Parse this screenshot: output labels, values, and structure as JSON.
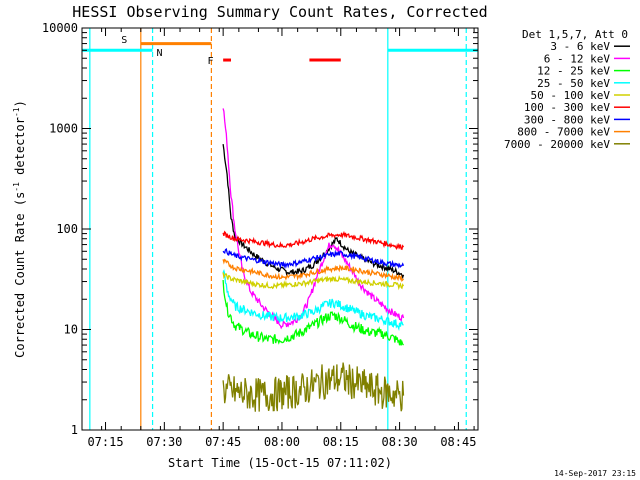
{
  "chart_data": {
    "type": "line",
    "title": "HESSI Observing Summary Count Rates, Corrected",
    "xlabel": "Start Time (15-Oct-15 07:11:02)",
    "ylabel": "Corrected Count Rate (s⁻¹ detector⁻¹)",
    "ylabel_parts": {
      "main": "Corrected Count Rate (s",
      "sup1": "-1",
      "mid": " detector",
      "sup2": "-1",
      "end": ")"
    },
    "yscale": "log",
    "xlim": [
      "07:09",
      "08:50"
    ],
    "ylim": [
      1,
      10000
    ],
    "xticks": [
      "07:15",
      "07:30",
      "07:45",
      "08:00",
      "08:15",
      "08:30",
      "08:45"
    ],
    "yticks": [
      {
        "value": 1,
        "label": "1"
      },
      {
        "value": 10,
        "label": "10"
      },
      {
        "value": 100,
        "label": "100"
      },
      {
        "value": 1000,
        "label": "1000"
      },
      {
        "value": 10000,
        "label": "10000"
      }
    ],
    "legend_header": "Det 1,5,7, Att 0",
    "legend_position": "right, outside plot",
    "series": [
      {
        "name": "3 - 6 keV",
        "color": "#000000",
        "points": [
          [
            "07:45",
            700
          ],
          [
            "07:46",
            350
          ],
          [
            "07:47",
            130
          ],
          [
            "07:48",
            85
          ],
          [
            "07:50",
            70
          ],
          [
            "07:53",
            55
          ],
          [
            "07:56",
            46
          ],
          [
            "07:59",
            40
          ],
          [
            "08:02",
            37
          ],
          [
            "08:05",
            38
          ],
          [
            "08:08",
            44
          ],
          [
            "08:11",
            58
          ],
          [
            "08:13",
            72
          ],
          [
            "08:14",
            80
          ],
          [
            "08:15",
            72
          ],
          [
            "08:17",
            60
          ],
          [
            "08:20",
            52
          ],
          [
            "08:23",
            46
          ],
          [
            "08:26",
            42
          ],
          [
            "08:29",
            38
          ],
          [
            "08:31",
            35
          ]
        ]
      },
      {
        "name": "6 - 12 keV",
        "color": "#ff00ff",
        "points": [
          [
            "07:45",
            1700
          ],
          [
            "07:46",
            700
          ],
          [
            "07:47",
            220
          ],
          [
            "07:48",
            100
          ],
          [
            "07:49",
            60
          ],
          [
            "07:50",
            38
          ],
          [
            "07:52",
            24
          ],
          [
            "07:55",
            17
          ],
          [
            "07:58",
            13
          ],
          [
            "08:00",
            11
          ],
          [
            "08:03",
            12
          ],
          [
            "08:05",
            14
          ],
          [
            "08:07",
            20
          ],
          [
            "08:09",
            35
          ],
          [
            "08:11",
            55
          ],
          [
            "08:12",
            68
          ],
          [
            "08:13",
            72
          ],
          [
            "08:14",
            65
          ],
          [
            "08:16",
            50
          ],
          [
            "08:18",
            38
          ],
          [
            "08:20",
            28
          ],
          [
            "08:23",
            21
          ],
          [
            "08:26",
            17
          ],
          [
            "08:29",
            14
          ],
          [
            "08:31",
            13
          ]
        ]
      },
      {
        "name": "12 - 25 keV",
        "color": "#00ff00",
        "points": [
          [
            "07:45",
            30
          ],
          [
            "07:46",
            16
          ],
          [
            "07:48",
            11
          ],
          [
            "07:52",
            9
          ],
          [
            "07:56",
            8
          ],
          [
            "08:00",
            8
          ],
          [
            "08:04",
            9
          ],
          [
            "08:08",
            11
          ],
          [
            "08:11",
            13
          ],
          [
            "08:13",
            14
          ],
          [
            "08:15",
            13
          ],
          [
            "08:18",
            11
          ],
          [
            "08:22",
            9.5
          ],
          [
            "08:26",
            9
          ],
          [
            "08:29",
            8
          ],
          [
            "08:31",
            7
          ]
        ]
      },
      {
        "name": "25 - 50 keV",
        "color": "#00ffff",
        "points": [
          [
            "07:45",
            40
          ],
          [
            "07:46",
            24
          ],
          [
            "07:48",
            17
          ],
          [
            "07:52",
            15
          ],
          [
            "07:56",
            13.5
          ],
          [
            "08:00",
            13
          ],
          [
            "08:04",
            13.5
          ],
          [
            "08:08",
            15
          ],
          [
            "08:11",
            17.5
          ],
          [
            "08:13",
            18.5
          ],
          [
            "08:15",
            17.5
          ],
          [
            "08:18",
            15.5
          ],
          [
            "08:22",
            13.5
          ],
          [
            "08:26",
            12.5
          ],
          [
            "08:29",
            11.5
          ],
          [
            "08:31",
            11
          ]
        ]
      },
      {
        "name": "50 - 100 keV",
        "color": "#d0d000",
        "points": [
          [
            "07:45",
            35
          ],
          [
            "07:47",
            32
          ],
          [
            "07:50",
            30
          ],
          [
            "07:54",
            28
          ],
          [
            "07:58",
            27
          ],
          [
            "08:02",
            28
          ],
          [
            "08:06",
            29
          ],
          [
            "08:10",
            31
          ],
          [
            "08:13",
            32
          ],
          [
            "08:16",
            31
          ],
          [
            "08:20",
            30
          ],
          [
            "08:24",
            29
          ],
          [
            "08:28",
            28
          ],
          [
            "08:31",
            27
          ]
        ]
      },
      {
        "name": "100 - 300 keV",
        "color": "#ff0000",
        "points": [
          [
            "07:45",
            90
          ],
          [
            "07:48",
            80
          ],
          [
            "07:52",
            76
          ],
          [
            "07:56",
            72
          ],
          [
            "08:00",
            68
          ],
          [
            "08:04",
            72
          ],
          [
            "08:08",
            80
          ],
          [
            "08:12",
            86
          ],
          [
            "08:15",
            88
          ],
          [
            "08:18",
            84
          ],
          [
            "08:22",
            78
          ],
          [
            "08:26",
            72
          ],
          [
            "08:29",
            68
          ],
          [
            "08:31",
            66
          ]
        ]
      },
      {
        "name": "300 - 800 keV",
        "color": "#0000ff",
        "points": [
          [
            "07:45",
            62
          ],
          [
            "07:48",
            54
          ],
          [
            "07:52",
            50
          ],
          [
            "07:56",
            47
          ],
          [
            "08:00",
            44
          ],
          [
            "08:04",
            46
          ],
          [
            "08:08",
            51
          ],
          [
            "08:12",
            55
          ],
          [
            "08:15",
            57
          ],
          [
            "08:18",
            54
          ],
          [
            "08:22",
            50
          ],
          [
            "08:26",
            46
          ],
          [
            "08:29",
            44
          ],
          [
            "08:31",
            43
          ]
        ]
      },
      {
        "name": "800 - 7000 keV",
        "color": "#ff8000",
        "points": [
          [
            "07:45",
            48
          ],
          [
            "07:48",
            41
          ],
          [
            "07:52",
            38
          ],
          [
            "07:56",
            35
          ],
          [
            "08:00",
            33
          ],
          [
            "08:04",
            34
          ],
          [
            "08:08",
            37
          ],
          [
            "08:12",
            40
          ],
          [
            "08:15",
            41
          ],
          [
            "08:18",
            40
          ],
          [
            "08:22",
            37
          ],
          [
            "08:26",
            35
          ],
          [
            "08:29",
            33
          ],
          [
            "08:31",
            32
          ]
        ]
      },
      {
        "name": "7000 - 20000 keV",
        "color": "#808000",
        "points": [
          [
            "07:45",
            2.5
          ],
          [
            "07:50",
            2.3
          ],
          [
            "07:55",
            2.2
          ],
          [
            "08:00",
            2.3
          ],
          [
            "08:05",
            2.5
          ],
          [
            "08:10",
            3
          ],
          [
            "08:15",
            3.3
          ],
          [
            "08:20",
            2.8
          ],
          [
            "08:25",
            2.4
          ],
          [
            "08:31",
            2.2
          ]
        ]
      }
    ],
    "vertical_lines": [
      {
        "time": "07:11",
        "color": "#00ffff",
        "style": "solid"
      },
      {
        "time": "07:24",
        "color": "#ff8000",
        "style": "solid"
      },
      {
        "time": "07:27",
        "color": "#00ffff",
        "style": "dashed"
      },
      {
        "time": "07:42",
        "color": "#ff8000",
        "style": "dashed"
      },
      {
        "time": "08:27",
        "color": "#00ffff",
        "style": "solid"
      },
      {
        "time": "08:47",
        "color": "#00ffff",
        "style": "dashed"
      }
    ],
    "top_bars": [
      {
        "from": "07:09",
        "to": "07:27",
        "y": 6000,
        "color": "#00ffff"
      },
      {
        "from": "07:24",
        "to": "07:42",
        "y": 7000,
        "color": "#ff8000"
      },
      {
        "from": "07:45",
        "to": "07:47",
        "y": 4800,
        "color": "#ff0000"
      },
      {
        "from": "08:07",
        "to": "08:15",
        "y": 4800,
        "color": "#ff0000"
      },
      {
        "from": "08:27",
        "to": "08:50",
        "y": 6000,
        "color": "#00ffff"
      }
    ],
    "markers": [
      {
        "label": "S",
        "time": "07:19",
        "y": 7800,
        "color": "#ff8000"
      },
      {
        "label": "N",
        "time": "07:28",
        "y": 5800,
        "color": "#00ffff"
      },
      {
        "label": "F",
        "time": "07:41",
        "y": 4800,
        "color": "#ff0000"
      }
    ],
    "timestamp": "14-Sep-2017 23:15"
  }
}
